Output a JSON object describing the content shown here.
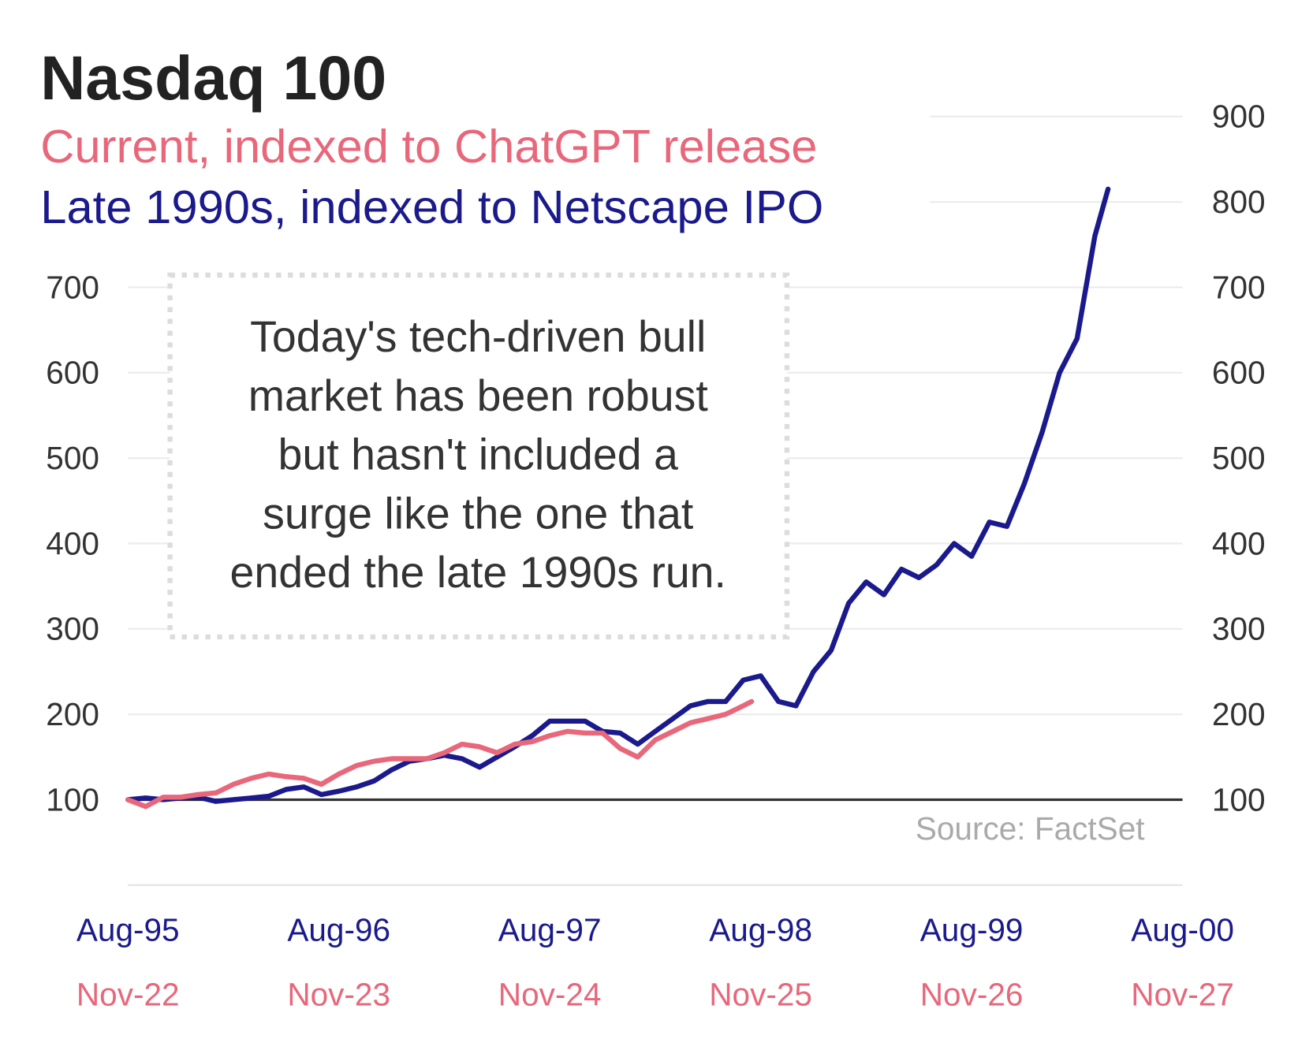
{
  "chart_data": {
    "type": "line",
    "title": "Nasdaq 100",
    "annotation": [
      "Today's tech-driven bull",
      "market has been robust",
      "but hasn't included a",
      "surge like the one that",
      "ended the late 1990s run."
    ],
    "source": "Source: FactSet",
    "xlim": [
      1995.583,
      2000.583
    ],
    "xticks": [
      {
        "value": 1995.583,
        "label": "Aug-95"
      },
      {
        "value": 1996.583,
        "label": "Aug-96"
      },
      {
        "value": 1997.583,
        "label": "Aug-97"
      },
      {
        "value": 1998.583,
        "label": "Aug-98"
      },
      {
        "value": 1999.583,
        "label": "Aug-99"
      },
      {
        "value": 2000.583,
        "label": "Aug-00"
      }
    ],
    "x2lim": [
      2022.833,
      2027.833
    ],
    "x2ticks": [
      {
        "value": 2022.833,
        "label": "Nov-22"
      },
      {
        "value": 2023.833,
        "label": "Nov-23"
      },
      {
        "value": 2024.833,
        "label": "Nov-24"
      },
      {
        "value": 2025.833,
        "label": "Nov-25"
      },
      {
        "value": 2026.833,
        "label": "Nov-26"
      },
      {
        "value": 2027.833,
        "label": "Nov-27"
      }
    ],
    "ylim": [
      0,
      900
    ],
    "yticks": [
      100,
      200,
      300,
      400,
      500,
      600,
      700
    ],
    "y2lim": [
      0,
      900
    ],
    "y2ticks": [
      100,
      200,
      300,
      400,
      500,
      600,
      700,
      800,
      900
    ],
    "grid": true,
    "series": [
      {
        "name": "Current, indexed to ChatGPT release",
        "color": "#e8677a",
        "axis": "x2",
        "x": [
          2022.833,
          2022.917,
          2023.0,
          2023.083,
          2023.167,
          2023.25,
          2023.333,
          2023.417,
          2023.5,
          2023.583,
          2023.667,
          2023.75,
          2023.833,
          2023.917,
          2024.0,
          2024.083,
          2024.167,
          2024.25,
          2024.333,
          2024.417,
          2024.5,
          2024.583,
          2024.667,
          2024.75,
          2024.833,
          2024.917,
          2025.0,
          2025.083,
          2025.167,
          2025.25,
          2025.333,
          2025.417,
          2025.5,
          2025.583,
          2025.667,
          2025.75,
          2025.79
        ],
        "values": [
          100,
          92,
          103,
          103,
          106,
          108,
          118,
          125,
          130,
          127,
          125,
          118,
          130,
          140,
          145,
          148,
          148,
          148,
          155,
          165,
          162,
          155,
          165,
          168,
          175,
          180,
          178,
          178,
          160,
          150,
          170,
          180,
          190,
          195,
          200,
          210,
          215
        ]
      },
      {
        "name": "Late 1990s, indexed to Netscape IPO",
        "color": "#1a1a8c",
        "x": [
          1995.583,
          1995.667,
          1995.75,
          1995.833,
          1995.917,
          1996.0,
          1996.083,
          1996.167,
          1996.25,
          1996.333,
          1996.417,
          1996.5,
          1996.583,
          1996.667,
          1996.75,
          1996.833,
          1996.917,
          1997.0,
          1997.083,
          1997.167,
          1997.25,
          1997.333,
          1997.417,
          1997.5,
          1997.583,
          1997.667,
          1997.75,
          1997.833,
          1997.917,
          1998.0,
          1998.083,
          1998.167,
          1998.25,
          1998.333,
          1998.417,
          1998.5,
          1998.583,
          1998.667,
          1998.75,
          1998.833,
          1998.917,
          1999.0,
          1999.083,
          1999.167,
          1999.25,
          1999.333,
          1999.417,
          1999.5,
          1999.583,
          1999.667,
          1999.75,
          1999.833,
          1999.917,
          2000.0,
          2000.083,
          2000.167,
          2000.23
        ],
        "values": [
          100,
          102,
          100,
          102,
          103,
          98,
          100,
          102,
          104,
          112,
          115,
          106,
          110,
          115,
          122,
          135,
          145,
          148,
          152,
          148,
          138,
          150,
          162,
          175,
          192,
          192,
          192,
          180,
          178,
          165,
          180,
          195,
          210,
          215,
          215,
          240,
          245,
          215,
          210,
          250,
          275,
          330,
          355,
          340,
          370,
          360,
          375,
          400,
          385,
          425,
          420,
          470,
          530,
          600,
          640,
          760,
          815
        ]
      }
    ]
  }
}
